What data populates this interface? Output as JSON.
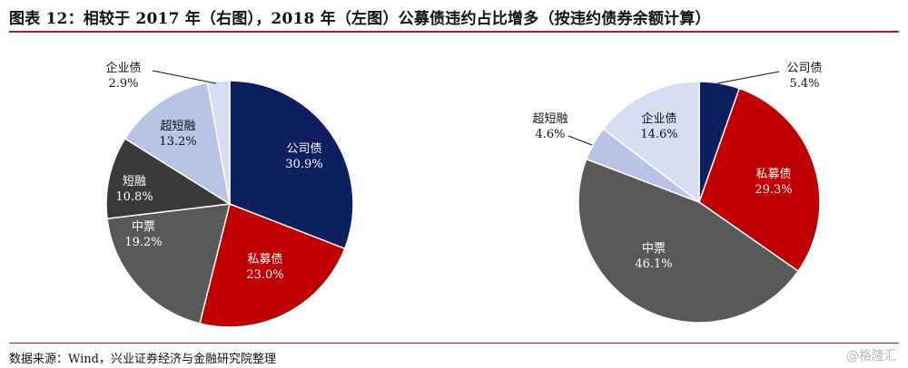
{
  "title": "图表 12：相较于 2017 年（右图），2018 年（左图）公募债违约占比增多（按违约债券余额计算）",
  "source": "数据来源：Wind，兴业证券经济与金融研究院整理",
  "watermark": "@格隆汇",
  "colors": {
    "公司债": "#0c1f5e",
    "私募债": "#c00000",
    "中票": "#595959",
    "短融": "#3a3a3a",
    "超短融": "#b8c3e6",
    "企业债": "#d7ddf0",
    "title_rule": "#9e1b24"
  },
  "chart_data": [
    {
      "type": "pie",
      "slices": [
        {
          "label": "公司债",
          "value": 30.9,
          "display": "30.9%"
        },
        {
          "label": "私募债",
          "value": 23.0,
          "display": "23.0%"
        },
        {
          "label": "中票",
          "value": 19.2,
          "display": "19.2%"
        },
        {
          "label": "短融",
          "value": 10.8,
          "display": "10.8%"
        },
        {
          "label": "超短融",
          "value": 13.2,
          "display": "13.2%"
        },
        {
          "label": "企业债",
          "value": 2.9,
          "display": "2.9%"
        }
      ]
    },
    {
      "type": "pie",
      "slices": [
        {
          "label": "公司债",
          "value": 5.4,
          "display": "5.4%"
        },
        {
          "label": "私募债",
          "value": 29.3,
          "display": "29.3%"
        },
        {
          "label": "中票",
          "value": 46.1,
          "display": "46.1%"
        },
        {
          "label": "超短融",
          "value": 4.6,
          "display": "4.6%"
        },
        {
          "label": "企业债",
          "value": 14.6,
          "display": "14.6%"
        }
      ]
    }
  ]
}
